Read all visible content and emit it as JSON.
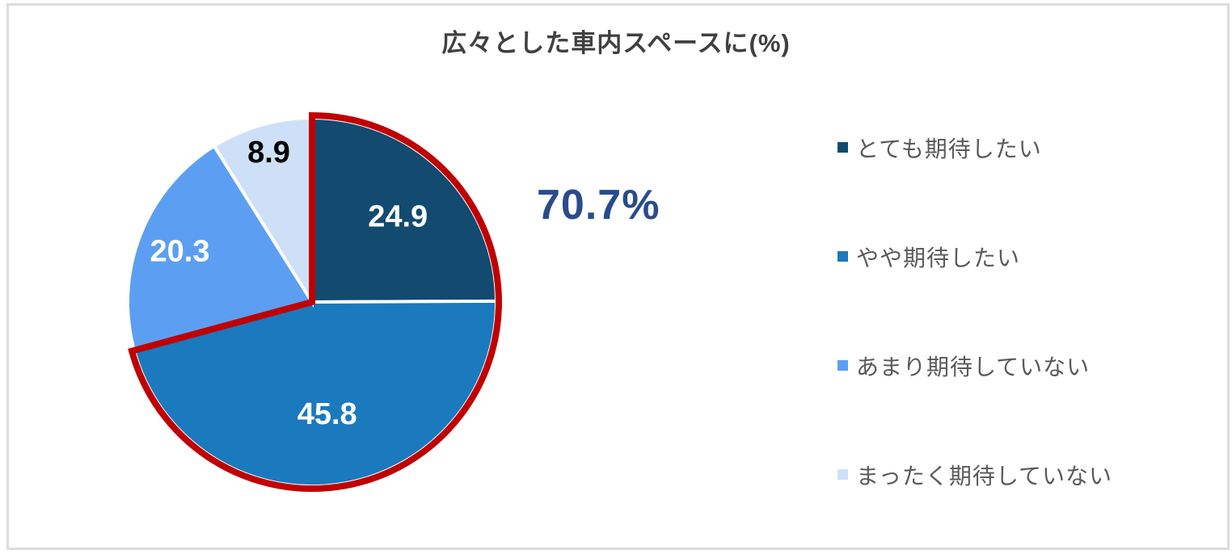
{
  "title": {
    "text": "広々とした車内スペースに(%)",
    "color": "#404040"
  },
  "chart_data": {
    "type": "pie",
    "title": "広々とした車内スペースに(%)",
    "categories": [
      "とても期待したい",
      "やや期待したい",
      "あまり期待していない",
      "まったく期待していない"
    ],
    "values": [
      24.9,
      45.8,
      20.3,
      8.9
    ],
    "slice_colors": [
      "#124A70",
      "#1B79BE",
      "#5C9FF2",
      "#CEE0F8"
    ],
    "data_label_colors": [
      "#FFFFFF",
      "#FFFFFF",
      "#FFFFFF",
      "#000000"
    ],
    "start_angle_deg": 0,
    "direction": "clockwise",
    "legend_position": "right",
    "highlight": {
      "text": "70.7%",
      "covered_values": [
        24.9,
        45.8
      ],
      "outline_color": "#C00000",
      "text_color": "#2A4B8C"
    }
  },
  "legend": {
    "text_color": "#595959",
    "items": [
      {
        "label": "とても期待したい",
        "color": "#124A70"
      },
      {
        "label": "やや期待したい",
        "color": "#1B79BE"
      },
      {
        "label": "あまり期待していない",
        "color": "#5C9FF2"
      },
      {
        "label": "まったく期待していない",
        "color": "#CEE0F8"
      }
    ]
  }
}
